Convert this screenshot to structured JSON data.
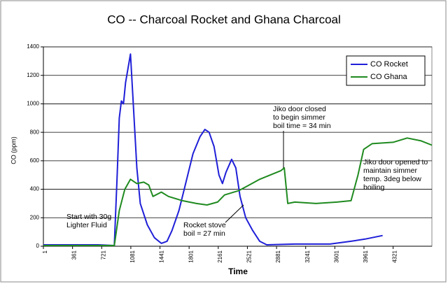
{
  "chart_data": {
    "type": "line",
    "title": "CO -- Charcoal Rocket and Ghana Charcoal",
    "x_label": "Time",
    "y_label": "CO (ppm)",
    "xlim": [
      1,
      4800
    ],
    "xticks": [
      1,
      361,
      721,
      1081,
      1441,
      1801,
      2161,
      2521,
      2881,
      3241,
      3601,
      3961,
      4321
    ],
    "ylim": [
      0,
      1400
    ],
    "yticks": [
      0,
      200,
      400,
      600,
      800,
      1000,
      1200,
      1400
    ],
    "grid": true,
    "legend": "top-right",
    "series": [
      {
        "name": "CO Rocket",
        "color": "#1f1fd8",
        "x": [
          1,
          331,
          678,
          877,
          912,
          938,
          964,
          990,
          1016,
          1077,
          1111,
          1155,
          1198,
          1285,
          1372,
          1458,
          1528,
          1589,
          1675,
          1762,
          1849,
          1936,
          1996,
          2048,
          2109,
          2170,
          2213,
          2257,
          2326,
          2378,
          2430,
          2500,
          2586,
          2673,
          2760,
          3107,
          3541,
          3801,
          3974,
          4191
        ],
        "values": [
          10,
          10,
          10,
          5,
          500,
          900,
          1020,
          1000,
          1150,
          1350,
          1000,
          550,
          300,
          150,
          60,
          20,
          35,
          110,
          250,
          450,
          650,
          770,
          820,
          800,
          700,
          500,
          440,
          520,
          610,
          550,
          350,
          200,
          110,
          35,
          10,
          15,
          15,
          35,
          50,
          75
        ]
      },
      {
        "name": "CO Ghana",
        "color": "#1f8a1f",
        "x": [
          1,
          331,
          678,
          877,
          938,
          1007,
          1077,
          1155,
          1241,
          1302,
          1354,
          1458,
          1545,
          1718,
          1892,
          2022,
          2152,
          2239,
          2413,
          2543,
          2673,
          2803,
          2933,
          2976,
          3020,
          3107,
          3367,
          3628,
          3801,
          3887,
          3957,
          4061,
          4321,
          4495,
          4668,
          4800
        ],
        "values": [
          5,
          5,
          5,
          5,
          250,
          400,
          470,
          440,
          450,
          430,
          350,
          380,
          350,
          320,
          300,
          290,
          310,
          360,
          390,
          430,
          470,
          500,
          530,
          550,
          300,
          310,
          300,
          310,
          320,
          500,
          680,
          720,
          730,
          760,
          740,
          710
        ]
      }
    ],
    "annotations": [
      {
        "lines": [
          "Jiko door closed",
          "to begin simmer",
          "boil time = 34 min"
        ]
      },
      {
        "lines": [
          "Jiko door opened to",
          "maintain simmer",
          "temp. 3deg below",
          "boiling"
        ]
      },
      {
        "lines": [
          "Start with 30g",
          "Lighter Fluid"
        ]
      },
      {
        "lines": [
          "Rocket stove",
          "boil = 27 min"
        ]
      }
    ]
  }
}
